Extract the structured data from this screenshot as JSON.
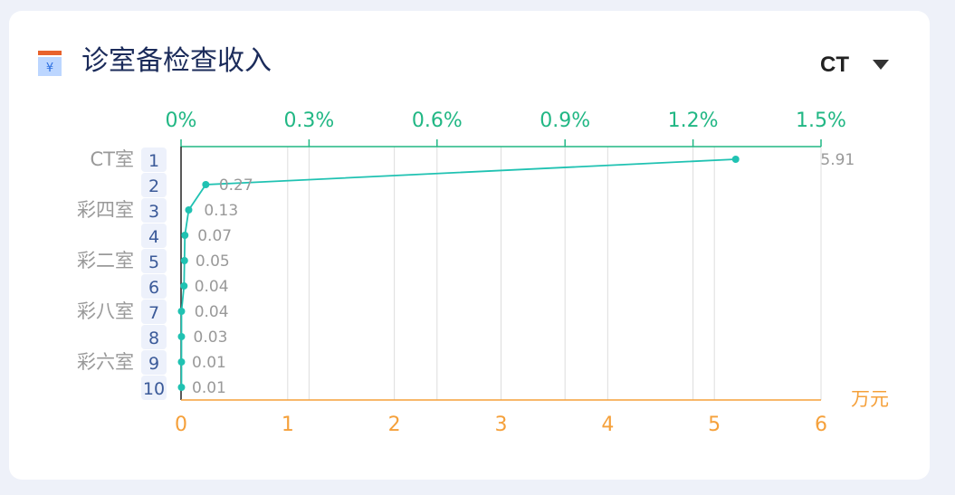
{
  "header": {
    "title": "诊室备检查收入",
    "dropdown_value": "CT",
    "icon": "calendar-yuan-icon"
  },
  "colors": {
    "bar_start": "#6ee8c5",
    "bar_end": "#f79a2e",
    "line": "#20c2b2",
    "top_axis": "#21b784",
    "bottom_axis": "#f5a03a",
    "rank_bg": "#edf1fb",
    "rank_text": "#3b5a99",
    "category_text": "#999999",
    "value_text": "#999999"
  },
  "chart_data": {
    "type": "bar",
    "orientation": "horizontal",
    "categories": [
      "CT室",
      "",
      "彩四室",
      "",
      "彩二室",
      "",
      "彩八室",
      "",
      "彩六室",
      ""
    ],
    "ranks": [
      "1",
      "2",
      "3",
      "4",
      "5",
      "6",
      "7",
      "8",
      "9",
      "10"
    ],
    "values": [
      5.91,
      0.27,
      0.13,
      0.07,
      0.05,
      0.04,
      0.04,
      0.03,
      0.01,
      0.01
    ],
    "value_labels": [
      "5.91",
      "0.27",
      "0.13",
      "0.07",
      "0.05",
      "0.04",
      "0.04",
      "0.03",
      "0.01",
      "0.01"
    ],
    "bottom_axis": {
      "unit": "万元",
      "range": [
        0,
        6
      ],
      "ticks": [
        "0",
        "1",
        "2",
        "3",
        "4",
        "5",
        "6"
      ]
    },
    "top_axis": {
      "range": [
        0,
        0.015
      ],
      "ticks": [
        "0%",
        "0.3%",
        "0.6%",
        "0.9%",
        "1.2%",
        "1.5%"
      ]
    },
    "line_series": {
      "axis": "top",
      "values": [
        0.013,
        0.00058,
        0.00018,
        9e-05,
        8e-05,
        7e-05,
        1e-05,
        1e-05,
        1e-05,
        1e-05
      ]
    },
    "grid": true
  }
}
